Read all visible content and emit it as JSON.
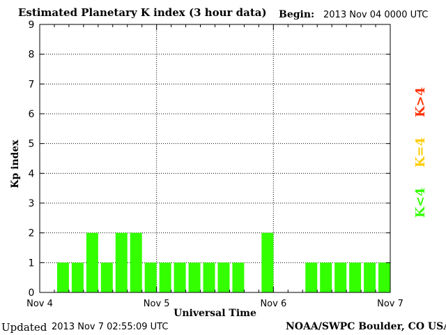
{
  "header": {
    "title": "Estimated Planetary K index (3 hour data)",
    "begin_label": "Begin:",
    "begin_value": "2013 Nov 04 0000 UTC"
  },
  "footer": {
    "updated_label": "Updated",
    "updated_value": "2013 Nov  7 02:55:09 UTC",
    "credit": "NOAA/SWPC Boulder, CO USA"
  },
  "legend": [
    {
      "label": "K>4",
      "color": "#ff3300"
    },
    {
      "label": "K=4",
      "color": "#ffcc00"
    },
    {
      "label": "K<4",
      "color": "#33ff00"
    }
  ],
  "chart_data": {
    "type": "bar",
    "title": "Estimated Planetary K index (3 hour data)",
    "xlabel": "Universal Time",
    "ylabel": "Kp index",
    "ylim": [
      0,
      9
    ],
    "yticks": [
      "0",
      "1",
      "2",
      "3",
      "4",
      "5",
      "6",
      "7",
      "8",
      "9"
    ],
    "xtick_labels": [
      "Nov 4",
      "Nov 5",
      "Nov 6",
      "Nov 7"
    ],
    "grid": true,
    "bar_color": "#33ff00",
    "series": [
      {
        "values": [
          null,
          1,
          1,
          2,
          1,
          2,
          2,
          1,
          1,
          1,
          1,
          1,
          1,
          1,
          null,
          2,
          null,
          null,
          1,
          1,
          1,
          1,
          1,
          1
        ]
      }
    ]
  }
}
